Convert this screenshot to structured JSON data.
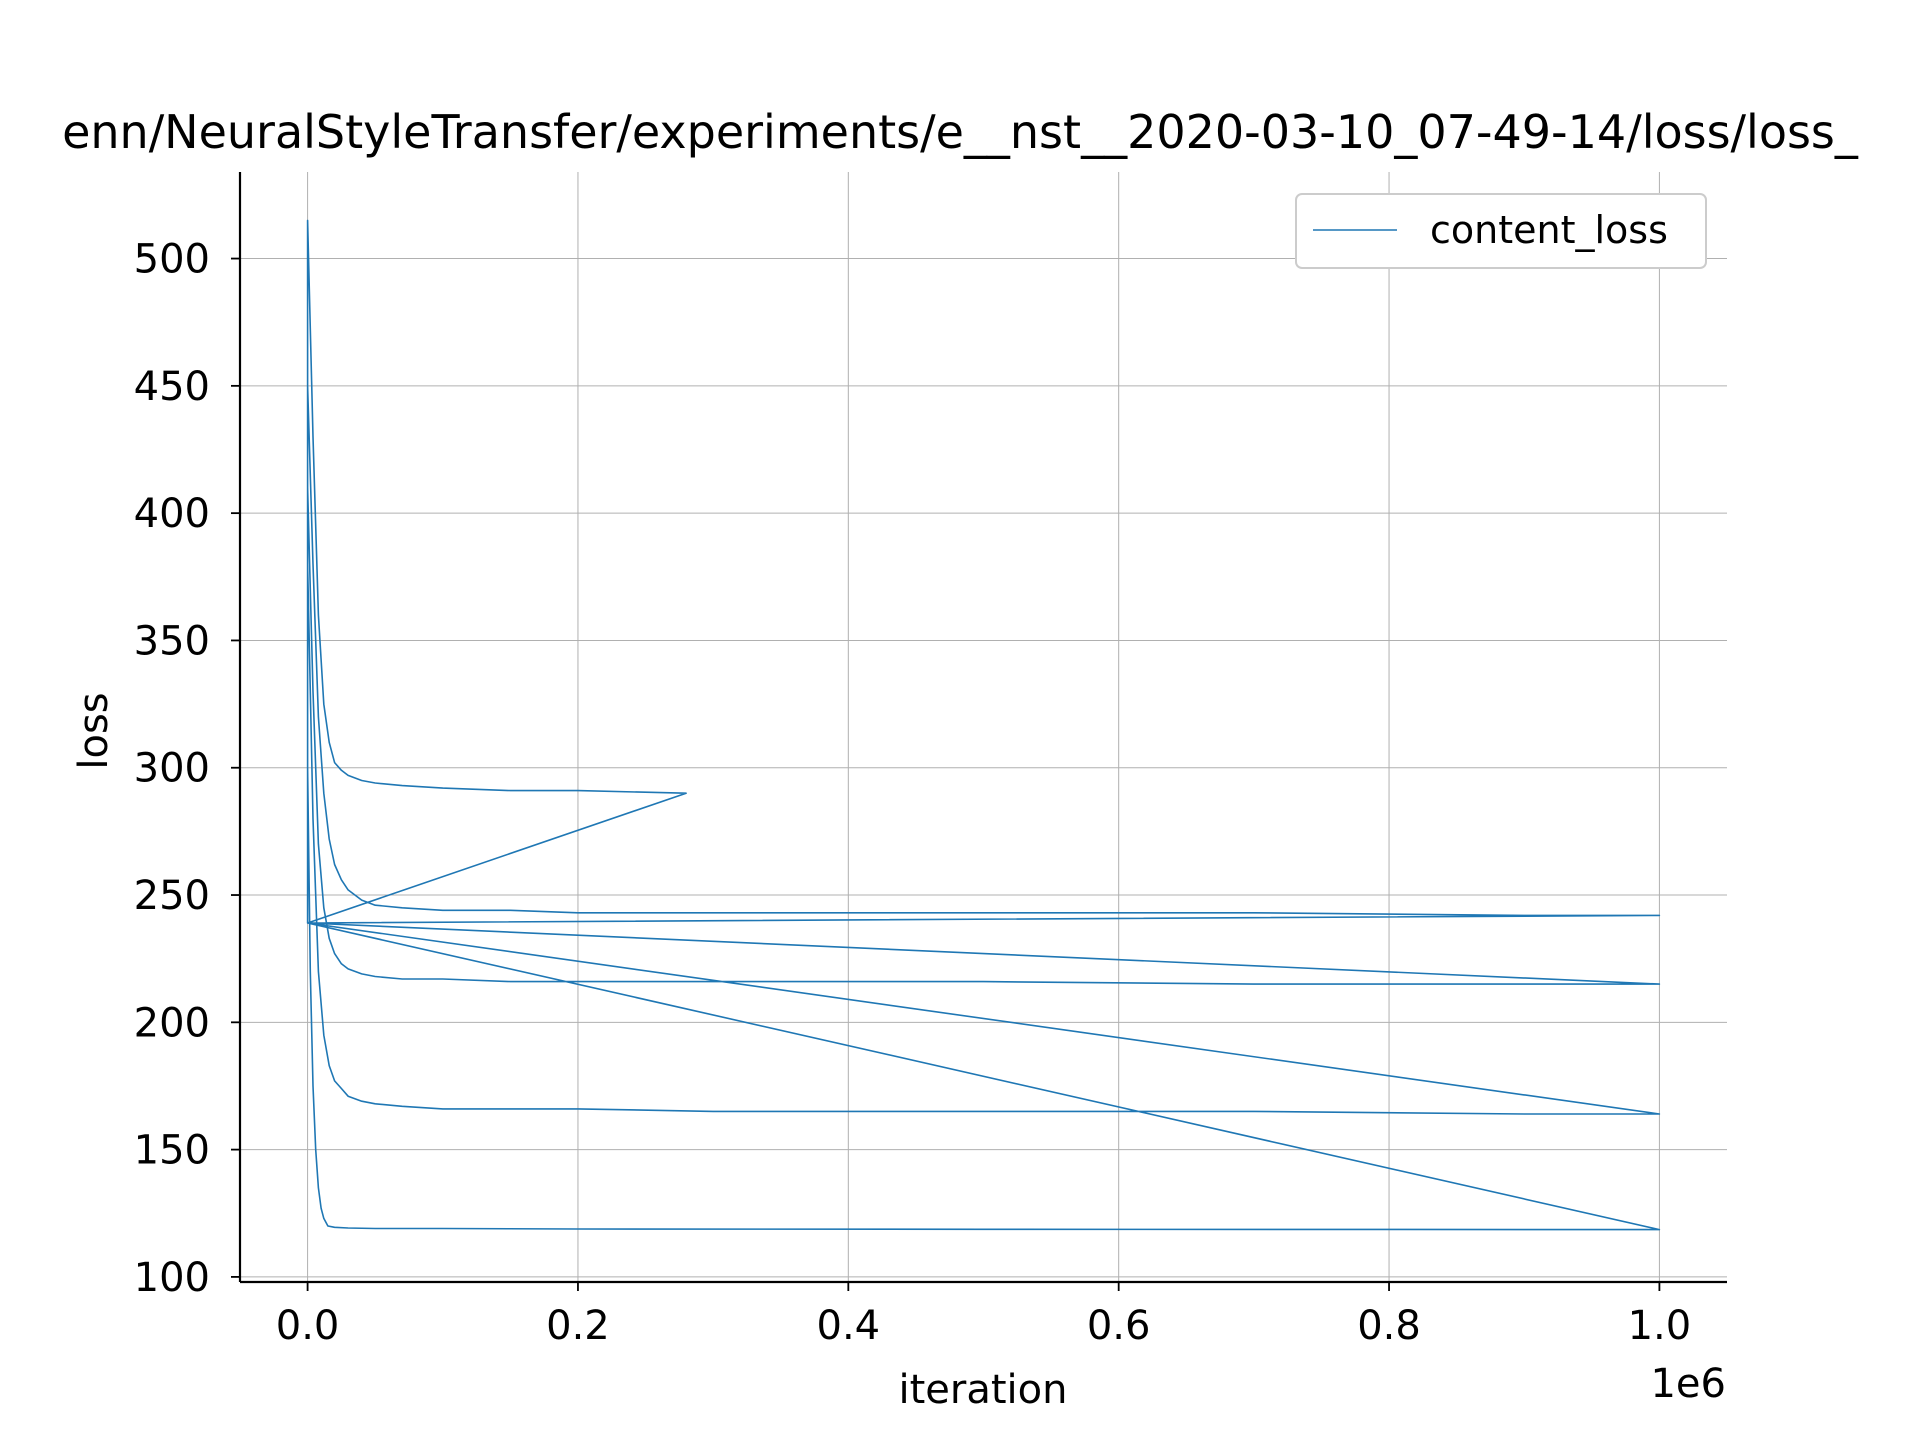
{
  "chart_data": {
    "type": "line",
    "title": "enn/NeuralStyleTransfer/experiments/e__nst__2020-03-10_07-49-14/loss/loss_",
    "xlabel": "iteration",
    "ylabel": "loss",
    "x_offset_label": "1e6",
    "xlim": [
      -0.05,
      1.05
    ],
    "ylim": [
      98,
      534
    ],
    "x_ticks": [
      0.0,
      0.2,
      0.4,
      0.6,
      0.8,
      1.0
    ],
    "x_tick_labels": [
      "0.0",
      "0.2",
      "0.4",
      "0.6",
      "0.8",
      "1.0"
    ],
    "y_ticks": [
      100,
      150,
      200,
      250,
      300,
      350,
      400,
      450,
      500
    ],
    "y_tick_labels": [
      "100",
      "150",
      "200",
      "250",
      "300",
      "350",
      "400",
      "450",
      "500"
    ],
    "grid": true,
    "legend": {
      "position": "top-right",
      "entries": [
        "content_loss"
      ]
    },
    "series": [
      {
        "name": "content_loss",
        "color": "#1f77b4",
        "x": [
          0.0,
          0.0,
          0.004,
          0.008,
          0.012,
          0.016,
          0.02,
          0.025,
          0.03,
          0.04,
          0.05,
          0.07,
          0.1,
          0.15,
          0.2,
          0.28,
          0.0,
          0.0,
          0.004,
          0.008,
          0.012,
          0.016,
          0.02,
          0.025,
          0.03,
          0.04,
          0.05,
          0.07,
          0.1,
          0.15,
          0.2,
          0.3,
          0.5,
          0.7,
          0.9,
          1.0,
          0.0,
          0.0,
          0.004,
          0.008,
          0.012,
          0.016,
          0.02,
          0.025,
          0.03,
          0.04,
          0.05,
          0.07,
          0.1,
          0.15,
          0.2,
          0.3,
          0.5,
          0.7,
          0.9,
          1.0,
          0.0,
          0.0,
          0.004,
          0.008,
          0.012,
          0.016,
          0.02,
          0.025,
          0.03,
          0.04,
          0.05,
          0.07,
          0.1,
          0.15,
          0.2,
          0.3,
          0.5,
          0.7,
          0.9,
          1.0,
          0.0,
          0.0,
          0.002,
          0.004,
          0.006,
          0.008,
          0.01,
          0.012,
          0.015,
          0.02,
          0.03,
          0.05,
          0.1,
          0.2,
          0.5,
          1.0,
          0.0
        ],
        "y": [
          239,
          515,
          430,
          360,
          325,
          310,
          302,
          299,
          297,
          295,
          294,
          293,
          292,
          291,
          291,
          290,
          239,
          450,
          380,
          320,
          290,
          272,
          262,
          256,
          252,
          248,
          246,
          245,
          244,
          244,
          243,
          243,
          243,
          243,
          242,
          242,
          239,
          410,
          330,
          270,
          245,
          233,
          227,
          223,
          221,
          219,
          218,
          217,
          217,
          216,
          216,
          216,
          216,
          215,
          215,
          215,
          239,
          380,
          280,
          220,
          195,
          183,
          177,
          174,
          171,
          169,
          168,
          167,
          166,
          166,
          166,
          165,
          165,
          165,
          164,
          164,
          239,
          300,
          220,
          175,
          150,
          135,
          127,
          123,
          120,
          119.5,
          119.2,
          119,
          119,
          118.8,
          118.7,
          118.6,
          239
        ]
      }
    ]
  }
}
